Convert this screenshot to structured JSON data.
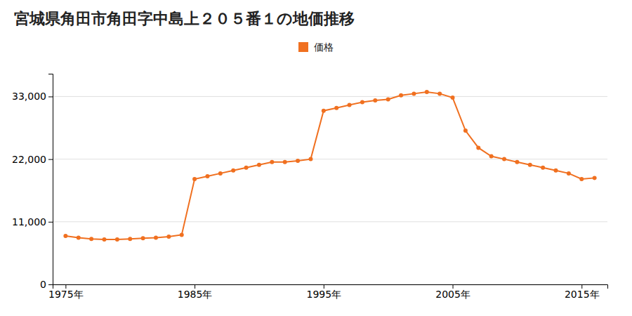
{
  "chart_data": {
    "type": "line",
    "title": "宮城県角田市角田字中島上２０５番１の地価推移",
    "x": [
      1975,
      1976,
      1977,
      1978,
      1979,
      1980,
      1981,
      1982,
      1983,
      1984,
      1985,
      1986,
      1987,
      1988,
      1989,
      1990,
      1991,
      1992,
      1993,
      1994,
      1995,
      1996,
      1997,
      1998,
      1999,
      2000,
      2001,
      2002,
      2003,
      2004,
      2005,
      2006,
      2007,
      2008,
      2009,
      2010,
      2011,
      2012,
      2013,
      2014,
      2015,
      2016
    ],
    "series": [
      {
        "name": "価格",
        "color": "#f07020",
        "marker": "circle",
        "values": [
          8500,
          8200,
          8000,
          7900,
          7900,
          8000,
          8100,
          8200,
          8400,
          8700,
          18500,
          19000,
          19500,
          20000,
          20500,
          21000,
          21500,
          21500,
          21700,
          22000,
          30500,
          31000,
          31500,
          32000,
          32300,
          32500,
          33200,
          33500,
          33800,
          33500,
          32800,
          27000,
          24000,
          22500,
          22000,
          21500,
          21000,
          20500,
          20000,
          19500,
          18500,
          18700
        ]
      }
    ],
    "xlim": [
      1974,
      2017
    ],
    "ylim": [
      0,
      37000
    ],
    "xticks": [
      {
        "value": 1975,
        "label": "1975年"
      },
      {
        "value": 1985,
        "label": "1985年"
      },
      {
        "value": 1995,
        "label": "1995年"
      },
      {
        "value": 2005,
        "label": "2005年"
      },
      {
        "value": 2015,
        "label": "2015年"
      }
    ],
    "yticks": [
      0,
      {
        "value": 11000,
        "label": "11,000"
      },
      {
        "value": 22000,
        "label": "22,000"
      },
      {
        "value": 33000,
        "label": "33,000"
      }
    ],
    "grid": true,
    "legend": "top"
  }
}
